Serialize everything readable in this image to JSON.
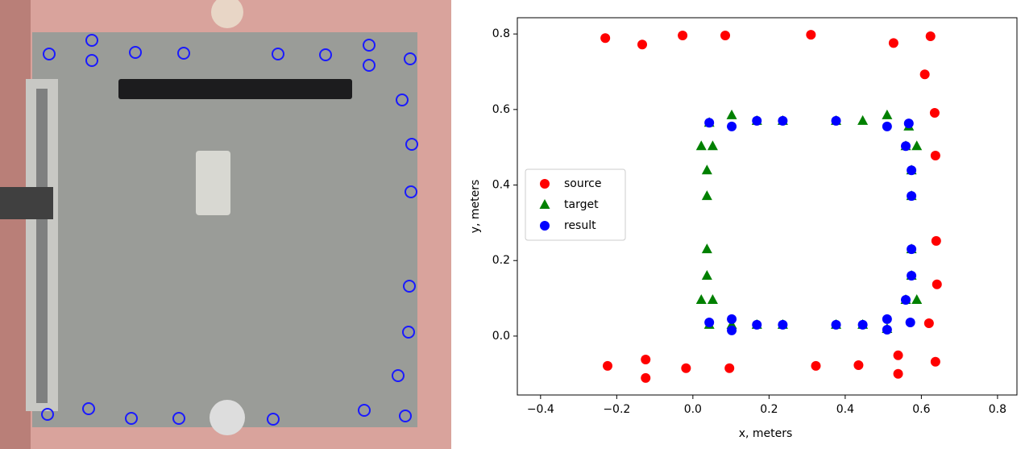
{
  "chart_data": {
    "type": "scatter",
    "xlabel": "x, meters",
    "ylabel": "y, meters",
    "xlim": [
      -0.461,
      0.851
    ],
    "ylim": [
      -0.156,
      0.843
    ],
    "xticks": [
      {
        "value": -0.4,
        "label": "−0.4"
      },
      {
        "value": -0.2,
        "label": "−0.2"
      },
      {
        "value": 0.0,
        "label": "0.0"
      },
      0.2,
      0.4,
      0.6,
      0.8
    ],
    "yticks": [
      {
        "value": 0.0,
        "label": "0.0"
      },
      0.2,
      0.4,
      0.6,
      0.8
    ],
    "legend": "center left",
    "series": [
      {
        "name": "source",
        "color": "#ff0000",
        "marker": "circle",
        "x": [
          -0.23,
          -0.133,
          -0.027,
          0.085,
          0.31,
          0.527,
          0.624,
          0.609,
          0.635,
          0.637,
          0.639,
          0.641,
          0.62,
          0.637,
          0.539,
          0.539,
          0.435,
          0.323,
          0.096,
          -0.018,
          -0.124,
          -0.124,
          -0.224
        ],
        "values": [
          0.789,
          0.772,
          0.796,
          0.796,
          0.798,
          0.776,
          0.794,
          0.693,
          0.591,
          0.478,
          0.252,
          0.137,
          0.034,
          -0.068,
          -0.051,
          -0.1,
          -0.077,
          -0.079,
          -0.085,
          -0.085,
          -0.062,
          -0.111,
          -0.079
        ]
      },
      {
        "name": "target",
        "color": "#008000",
        "marker": "triangle",
        "x": [
          0.043,
          0.102,
          0.168,
          0.236,
          0.376,
          0.446,
          0.51,
          0.588,
          0.559,
          0.022,
          0.052,
          0.037,
          0.037,
          0.037,
          0.037,
          0.022,
          0.052,
          0.043,
          0.102,
          0.168,
          0.236,
          0.376,
          0.446,
          0.51,
          0.588,
          0.559,
          0.574,
          0.574,
          0.574,
          0.574,
          0.567
        ],
        "values": [
          0.565,
          0.585,
          0.57,
          0.57,
          0.57,
          0.57,
          0.585,
          0.503,
          0.503,
          0.503,
          0.503,
          0.439,
          0.371,
          0.23,
          0.16,
          0.096,
          0.096,
          0.03,
          0.03,
          0.03,
          0.03,
          0.03,
          0.03,
          0.019,
          0.096,
          0.096,
          0.16,
          0.23,
          0.371,
          0.439,
          0.555
        ]
      },
      {
        "name": "result",
        "color": "#0000ff",
        "marker": "circle",
        "x": [
          0.043,
          0.102,
          0.168,
          0.236,
          0.376,
          0.51,
          0.567,
          0.559,
          0.574,
          0.574,
          0.574,
          0.574,
          0.559,
          0.571,
          0.51,
          0.51,
          0.446,
          0.376,
          0.236,
          0.168,
          0.102,
          0.102,
          0.043
        ],
        "values": [
          0.565,
          0.555,
          0.57,
          0.57,
          0.57,
          0.555,
          0.563,
          0.503,
          0.439,
          0.371,
          0.23,
          0.16,
          0.096,
          0.036,
          0.045,
          0.017,
          0.03,
          0.03,
          0.03,
          0.03,
          0.045,
          0.015,
          0.036
        ]
      }
    ]
  }
}
